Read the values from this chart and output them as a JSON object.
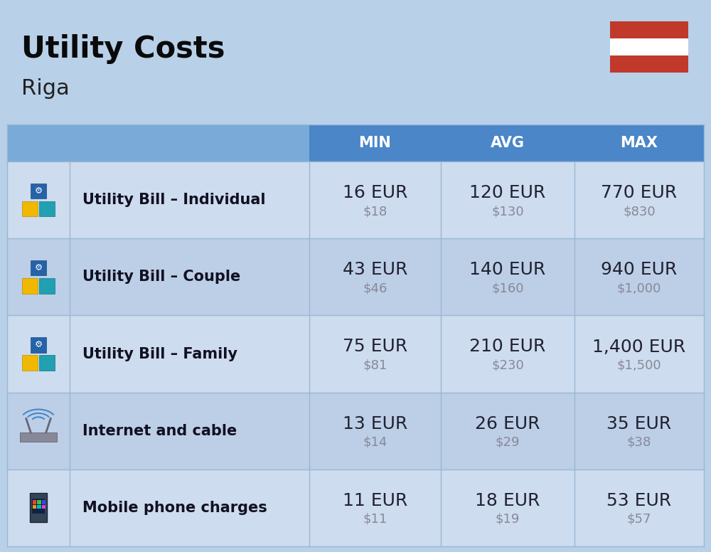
{
  "title": "Utility Costs",
  "subtitle": "Riga",
  "background_color": "#b8d0e8",
  "header_bg_color": "#4a86c8",
  "header_bg_light": "#7aaad8",
  "header_text_color": "#ffffff",
  "row_bg_color_1": "#cddcee",
  "row_bg_color_2": "#bccfe6",
  "divider_color": "#9ab8d4",
  "col_header_labels": [
    "MIN",
    "AVG",
    "MAX"
  ],
  "rows": [
    {
      "label": "Utility Bill – Individual",
      "min_eur": "16 EUR",
      "min_usd": "$18",
      "avg_eur": "120 EUR",
      "avg_usd": "$130",
      "max_eur": "770 EUR",
      "max_usd": "$830"
    },
    {
      "label": "Utility Bill – Couple",
      "min_eur": "43 EUR",
      "min_usd": "$46",
      "avg_eur": "140 EUR",
      "avg_usd": "$160",
      "max_eur": "940 EUR",
      "max_usd": "$1,000"
    },
    {
      "label": "Utility Bill – Family",
      "min_eur": "75 EUR",
      "min_usd": "$81",
      "avg_eur": "210 EUR",
      "avg_usd": "$230",
      "max_eur": "1,400 EUR",
      "max_usd": "$1,500"
    },
    {
      "label": "Internet and cable",
      "min_eur": "13 EUR",
      "min_usd": "$14",
      "avg_eur": "26 EUR",
      "avg_usd": "$29",
      "max_eur": "35 EUR",
      "max_usd": "$38"
    },
    {
      "label": "Mobile phone charges",
      "min_eur": "11 EUR",
      "min_usd": "$11",
      "avg_eur": "18 EUR",
      "avg_usd": "$19",
      "max_eur": "53 EUR",
      "max_usd": "$57"
    }
  ],
  "flag_red": "#c0392b",
  "flag_white": "#ffffff",
  "title_fontsize": 30,
  "subtitle_fontsize": 22,
  "header_fontsize": 15,
  "label_fontsize": 15,
  "value_fontsize": 18,
  "usd_fontsize": 13,
  "usd_color": "#888899",
  "cell_text_color": "#222233",
  "label_text_color": "#111122"
}
